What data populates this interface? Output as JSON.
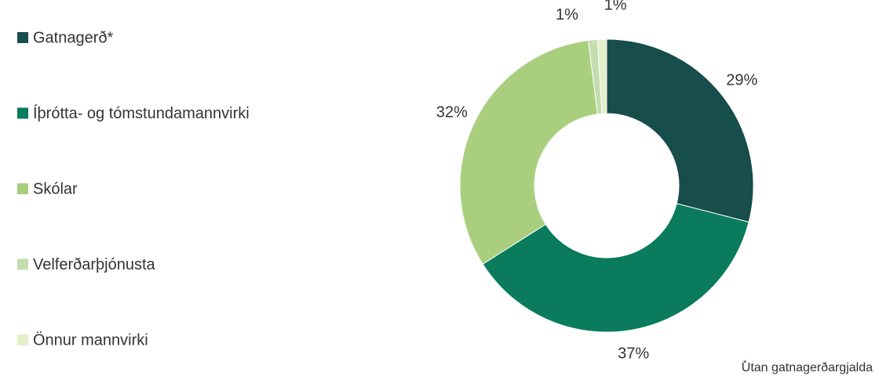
{
  "chart_data": {
    "type": "donut",
    "categories": [
      "Gatnagerð*",
      "Íþrótta- og tómstundamannvirki",
      "Skólar",
      "Velferðarþjónusta",
      "Önnur mannvirki"
    ],
    "values": [
      29,
      37,
      32,
      1,
      1
    ],
    "value_labels": [
      "29%",
      "37%",
      "32%",
      "1%",
      "1%"
    ],
    "colors": [
      "#174d4a",
      "#0a7b5c",
      "#a9cf7e",
      "#c5dcb0",
      "#e2efc8"
    ],
    "legend": "left",
    "note_mark": "*",
    "note": "Utan gatnagerðargjalda"
  }
}
